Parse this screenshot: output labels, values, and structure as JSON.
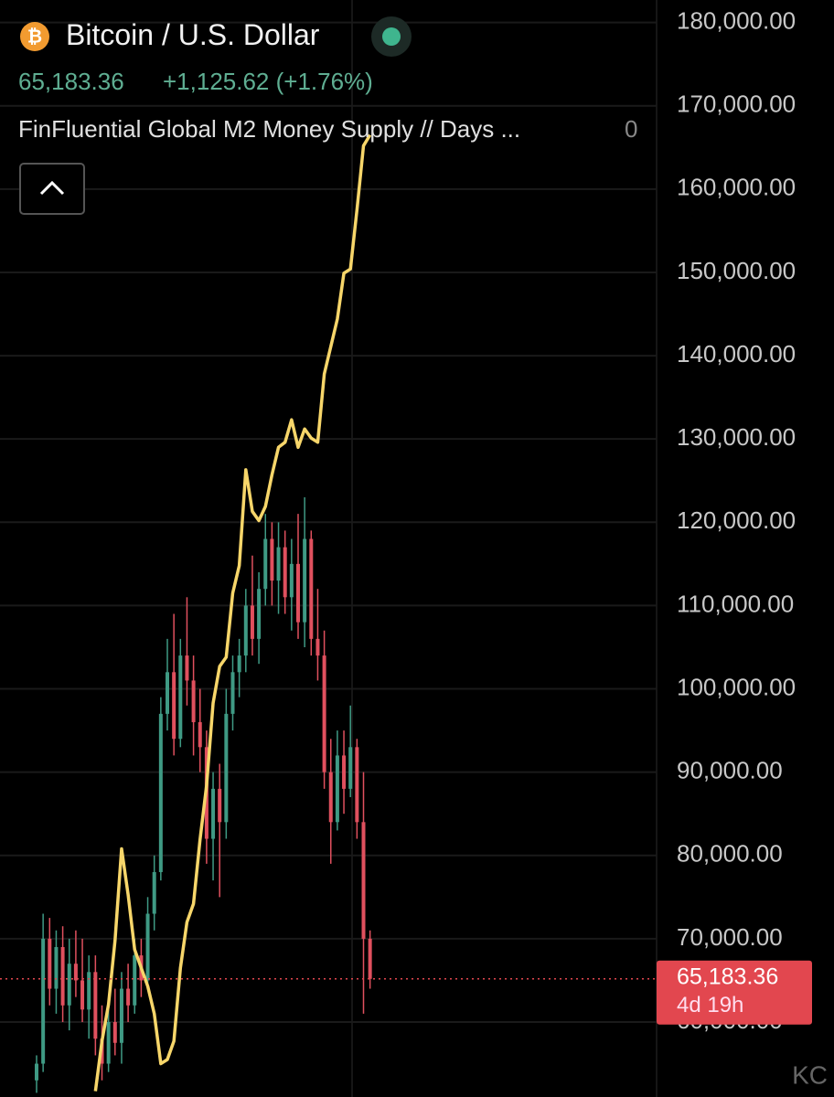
{
  "header": {
    "symbol": "Bitcoin / U.S. Dollar",
    "price": "65,183.36",
    "change": "+1,125.62 (+1.76%)",
    "indicator_value": "0",
    "watermark": "KC"
  },
  "chart_data": {
    "type": "candlestick",
    "categories": [
      null,
      null,
      null,
      null,
      null,
      null,
      null,
      null,
      null,
      null,
      null,
      null,
      null,
      null,
      null,
      null,
      null,
      null,
      null,
      null,
      null,
      null,
      null,
      null,
      null,
      null,
      null,
      null,
      null,
      null,
      null,
      null,
      null,
      null,
      null,
      null,
      null,
      null,
      null,
      null,
      null,
      null,
      null,
      null,
      null,
      null,
      null,
      null,
      null,
      null,
      null,
      null
    ],
    "up_color": "#3f9a84",
    "down_color": "#e0505e",
    "open": [
      53000,
      55000,
      70000,
      64000,
      69000,
      62000,
      67000,
      65000,
      61500,
      66000,
      58000,
      55000,
      60000,
      57500,
      64000,
      62000,
      68000,
      65000,
      73000,
      78000,
      97000,
      102000,
      94000,
      104000,
      101000,
      96000,
      93000,
      82000,
      88000,
      84000,
      97000,
      102000,
      104000,
      110000,
      106000,
      112000,
      118000,
      113000,
      117000,
      111000,
      115000,
      108000,
      118000,
      106000,
      104000,
      90000,
      84000,
      92000,
      88000,
      93000,
      84000,
      70000
    ],
    "high": [
      56000,
      73000,
      72500,
      71000,
      71500,
      70000,
      71000,
      70000,
      68000,
      68000,
      62000,
      62000,
      64000,
      66000,
      67000,
      70000,
      70000,
      75000,
      80000,
      99000,
      106000,
      109000,
      106000,
      111000,
      104000,
      100000,
      95000,
      90000,
      91000,
      100000,
      104000,
      106000,
      112000,
      116000,
      114000,
      121000,
      120000,
      120000,
      119000,
      118000,
      121000,
      123000,
      119000,
      112000,
      107000,
      94000,
      95000,
      95000,
      98000,
      94000,
      90000,
      71000
    ],
    "low": [
      51500,
      54000,
      62000,
      61000,
      60000,
      59000,
      63000,
      60000,
      58000,
      56000,
      53000,
      54000,
      56000,
      55000,
      60000,
      61000,
      63000,
      64000,
      71000,
      77000,
      95000,
      92000,
      93000,
      98000,
      92000,
      90000,
      79000,
      77000,
      75000,
      82000,
      95000,
      99000,
      102000,
      104000,
      103000,
      110000,
      110000,
      109000,
      109000,
      107000,
      106000,
      105000,
      104000,
      101000,
      88000,
      79000,
      83000,
      85000,
      87000,
      82000,
      61000,
      64000
    ],
    "close": [
      55000,
      70000,
      64000,
      69000,
      62000,
      67000,
      65000,
      61500,
      66000,
      58000,
      55000,
      60000,
      57500,
      64000,
      62000,
      68000,
      65000,
      73000,
      78000,
      97000,
      102000,
      94000,
      104000,
      101000,
      96000,
      93000,
      82000,
      88000,
      84000,
      97000,
      102000,
      104000,
      110000,
      106000,
      112000,
      118000,
      113000,
      117000,
      111000,
      115000,
      108000,
      118000,
      106000,
      104000,
      90000,
      84000,
      92000,
      88000,
      93000,
      84000,
      70000,
      65183.36
    ],
    "line": {
      "name": "FinFluential Global M2 Money Supply // Days ...",
      "color": "#f7d66a",
      "values": [
        null,
        null,
        null,
        null,
        null,
        null,
        null,
        null,
        null,
        51700,
        57700,
        62100,
        69800,
        80800,
        75300,
        68700,
        66500,
        64300,
        61000,
        55000,
        55500,
        57700,
        66500,
        72000,
        74200,
        81900,
        88400,
        98300,
        102700,
        103800,
        111500,
        114800,
        126300,
        121300,
        120200,
        121900,
        125700,
        129000,
        129600,
        132300,
        129000,
        131200,
        130100,
        129600,
        137800,
        141100,
        144400,
        149900,
        150400,
        157500,
        165200,
        166500
      ]
    },
    "price_line": {
      "value": 65183.36,
      "label": "65,183.36",
      "countdown": "4d 19h",
      "color": "#e2474f"
    },
    "ylim": [
      51000,
      182700
    ],
    "yticks": [
      {
        "value": 60000,
        "label": "60,000.00"
      },
      {
        "value": 70000,
        "label": "70,000.00"
      },
      {
        "value": 80000,
        "label": "80,000.00"
      },
      {
        "value": 90000,
        "label": "90,000.00"
      },
      {
        "value": 100000,
        "label": "100,000.00"
      },
      {
        "value": 110000,
        "label": "110,000.00"
      },
      {
        "value": 120000,
        "label": "120,000.00"
      },
      {
        "value": 130000,
        "label": "130,000.00"
      },
      {
        "value": 140000,
        "label": "140,000.00"
      },
      {
        "value": 150000,
        "label": "150,000.00"
      },
      {
        "value": 160000,
        "label": "160,000.00"
      },
      {
        "value": 170000,
        "label": "170,000.00"
      },
      {
        "value": 180000,
        "label": "180,000.00"
      }
    ],
    "grid": true
  }
}
